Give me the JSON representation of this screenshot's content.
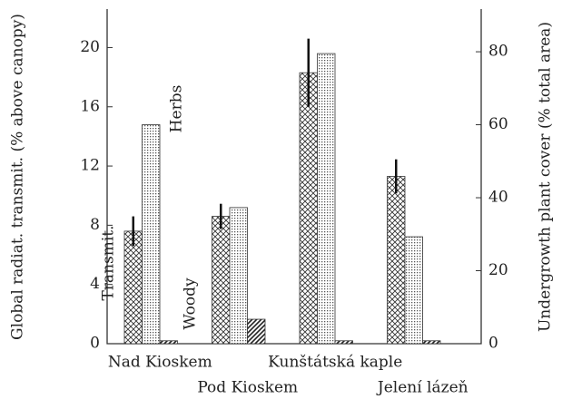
{
  "chart_data": {
    "type": "bar",
    "y_label": "Global radiat. transmit. (% above canopy)",
    "y2_label": "Undergrowth plant cover (% total area)",
    "categories": [
      "Nad Kioskem",
      "Pod Kioskem",
      "Kunštátská kaple",
      "Jelení lázeň"
    ],
    "series": [
      {
        "name": "Transmit.",
        "pattern": "crosshatch",
        "values": [
          7.6,
          8.6,
          18.3,
          11.3
        ],
        "errors": [
          1.0,
          0.85,
          2.3,
          1.15
        ]
      },
      {
        "name": "Herbs",
        "pattern": "dots",
        "axis": "y2",
        "values": [
          60,
          37.3,
          79.5,
          29.3
        ]
      },
      {
        "name": "Woody",
        "pattern": "diagonal",
        "axis": "y2",
        "values": [
          0.8,
          6.7,
          0.8,
          0.8
        ]
      }
    ],
    "ylim": [
      0,
      22.6
    ],
    "yticks": [
      0,
      4,
      8,
      12,
      16,
      20
    ],
    "y2lim": [
      0,
      91.7
    ],
    "y2ticks": [
      0,
      20,
      40,
      60,
      80
    ]
  }
}
